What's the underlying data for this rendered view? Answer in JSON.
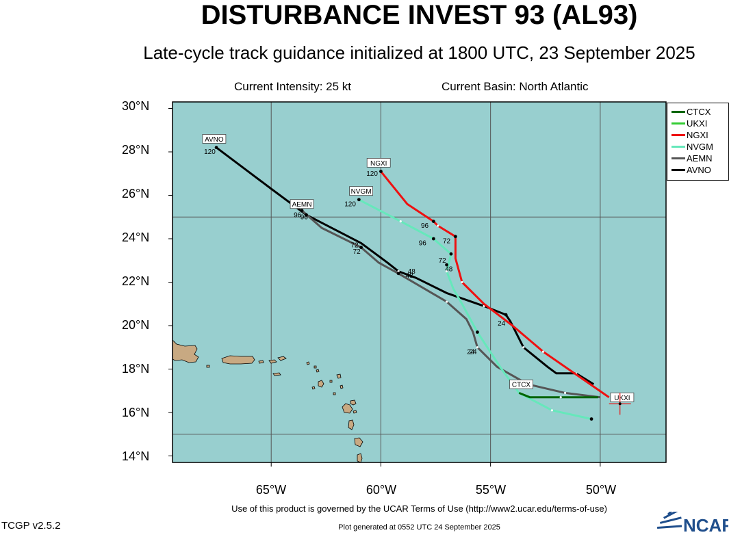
{
  "header": {
    "title": "DISTURBANCE INVEST 93 (AL93)",
    "subtitle": "Late-cycle track guidance initialized at 1800 UTC, 23 September 2025"
  },
  "info": {
    "intensity": "Current Intensity: 25 kt",
    "basin": "Current Basin: North Atlantic"
  },
  "colors": {
    "ocean": "#98cfcf",
    "land": "#c8a982",
    "CTCX": "#006400",
    "UKXI": "#33cc33",
    "NGXI": "#ee1111",
    "NVGM": "#66e8bb",
    "AEMN": "#555555",
    "AVNO": "#000000"
  },
  "chart_data": {
    "type": "map",
    "axes": {
      "lon_range": [
        -69.5,
        -47
      ],
      "lat_range": [
        13.7,
        30.3
      ],
      "lat_ticks": [
        {
          "value": 30,
          "label": "30°N"
        },
        {
          "value": 28,
          "label": "28°N"
        },
        {
          "value": 26,
          "label": "26°N"
        },
        {
          "value": 24,
          "label": "24°N"
        },
        {
          "value": 22,
          "label": "22°N"
        },
        {
          "value": 20,
          "label": "20°N"
        },
        {
          "value": 18,
          "label": "18°N"
        },
        {
          "value": 16,
          "label": "16°N"
        },
        {
          "value": 14,
          "label": "14°N"
        }
      ],
      "lon_ticks": [
        {
          "value": -65,
          "label": "65°W"
        },
        {
          "value": -60,
          "label": "60°W"
        },
        {
          "value": -55,
          "label": "55°W"
        },
        {
          "value": -50,
          "label": "50°W"
        }
      ],
      "gridlines": {
        "lon": [
          -65,
          -60,
          -55,
          -50
        ],
        "lat": [
          15,
          25
        ]
      }
    },
    "current_position": {
      "lon": -49.1,
      "lat": 16.4
    },
    "legend": [
      "CTCX",
      "UKXI",
      "NGXI",
      "NVGM",
      "AEMN",
      "AVNO"
    ],
    "legend_position": "top-right",
    "series": [
      {
        "name": "CTCX",
        "label_at": [
          -53.6,
          17.3
        ],
        "points": [
          [
            -50.1,
            16.7
          ],
          [
            -51.8,
            16.7
          ],
          [
            -53.2,
            16.7
          ],
          [
            -53.7,
            16.9
          ]
        ],
        "hour_labels": []
      },
      {
        "name": "UKXI",
        "label_at": [
          -49.0,
          16.7
        ],
        "points": [],
        "hour_labels": []
      },
      {
        "name": "NGXI",
        "label_at": [
          -60.1,
          27.5
        ],
        "points": [
          [
            -49.6,
            16.7
          ],
          [
            -52.6,
            18.8
          ],
          [
            -54.0,
            20.0
          ],
          [
            -55.3,
            21.0
          ],
          [
            -56.3,
            22.0
          ],
          [
            -56.6,
            23.1
          ],
          [
            -56.6,
            24.1
          ],
          [
            -57.4,
            24.6
          ],
          [
            -57.6,
            24.8
          ],
          [
            -58.8,
            25.6
          ],
          [
            -60.0,
            27.1
          ]
        ],
        "dots": [
          [
            -56.6,
            24.1
          ],
          [
            -57.6,
            24.8
          ],
          [
            -60.0,
            27.1
          ]
        ],
        "hour_labels": [
          {
            "text": "72",
            "at": [
              -57.0,
              23.8
            ]
          },
          {
            "text": "96",
            "at": [
              -58.0,
              24.5
            ]
          },
          {
            "text": "120",
            "at": [
              -60.4,
              26.9
            ]
          }
        ]
      },
      {
        "name": "NVGM",
        "label_at": [
          -60.9,
          26.2
        ],
        "points": [
          [
            -50.4,
            15.7
          ],
          [
            -52.2,
            16.1
          ],
          [
            -53.7,
            16.9
          ],
          [
            -54.5,
            18.0
          ],
          [
            -55.6,
            19.7
          ],
          [
            -56.3,
            21.0
          ],
          [
            -56.7,
            21.7
          ],
          [
            -57.0,
            22.5
          ],
          [
            -56.8,
            23.3
          ],
          [
            -57.6,
            24.0
          ],
          [
            -59.1,
            24.8
          ],
          [
            -61.0,
            25.8
          ]
        ],
        "dots": [
          [
            -50.4,
            15.7
          ],
          [
            -55.6,
            19.7
          ],
          [
            -57.0,
            22.8
          ],
          [
            -56.8,
            23.3
          ],
          [
            -57.6,
            24.0
          ],
          [
            -61.0,
            25.8
          ]
        ],
        "hour_labels": [
          {
            "text": "24",
            "at": [
              -55.9,
              18.7
            ]
          },
          {
            "text": "48",
            "at": [
              -56.9,
              22.5
            ]
          },
          {
            "text": "72",
            "at": [
              -57.2,
              22.9
            ]
          },
          {
            "text": "96",
            "at": [
              -58.1,
              23.7
            ]
          },
          {
            "text": "120",
            "at": [
              -61.4,
              25.5
            ]
          }
        ]
      },
      {
        "name": "AEMN",
        "label_at": [
          -63.6,
          25.6
        ],
        "points": [
          [
            -50.0,
            16.7
          ],
          [
            -51.6,
            16.9
          ],
          [
            -53.3,
            17.3
          ],
          [
            -54.7,
            18.1
          ],
          [
            -55.6,
            19.0
          ],
          [
            -55.8,
            19.7
          ],
          [
            -56.1,
            20.3
          ],
          [
            -57.0,
            21.1
          ],
          [
            -59.2,
            22.4
          ],
          [
            -60.1,
            22.9
          ],
          [
            -60.9,
            23.6
          ],
          [
            -62.7,
            24.5
          ],
          [
            -63.6,
            25.3
          ]
        ],
        "dots": [
          [
            -60.9,
            23.6
          ],
          [
            -59.2,
            22.4
          ],
          [
            -63.6,
            25.3
          ]
        ],
        "hour_labels": [
          {
            "text": "24",
            "at": [
              -55.8,
              18.7
            ]
          },
          {
            "text": "48",
            "at": [
              -58.7,
              22.2
            ]
          },
          {
            "text": "72",
            "at": [
              -61.1,
              23.3
            ]
          },
          {
            "text": "96",
            "at": [
              -63.5,
              24.9
            ]
          }
        ]
      },
      {
        "name": "AVNO",
        "label_at": [
          -67.6,
          28.6
        ],
        "points": [
          [
            -50.3,
            17.3
          ],
          [
            -51.1,
            17.8
          ],
          [
            -52.0,
            17.8
          ],
          [
            -52.4,
            18.1
          ],
          [
            -53.5,
            19.0
          ],
          [
            -54.1,
            20.2
          ],
          [
            -54.3,
            20.5
          ],
          [
            -55.3,
            20.9
          ],
          [
            -57.0,
            21.5
          ],
          [
            -58.4,
            22.2
          ],
          [
            -59.2,
            22.5
          ],
          [
            -59.7,
            22.9
          ],
          [
            -60.9,
            23.8
          ],
          [
            -63.4,
            25.1
          ],
          [
            -65.0,
            26.3
          ],
          [
            -67.5,
            28.2
          ]
        ],
        "dots": [
          [
            -54.3,
            20.5
          ],
          [
            -63.4,
            25.1
          ],
          [
            -67.5,
            28.2
          ]
        ],
        "hour_labels": [
          {
            "text": "24",
            "at": [
              -54.5,
              20.0
            ]
          },
          {
            "text": "48",
            "at": [
              -58.6,
              22.4
            ]
          },
          {
            "text": "72",
            "at": [
              -61.2,
              23.6
            ]
          },
          {
            "text": "96",
            "at": [
              -63.8,
              25.0
            ]
          },
          {
            "text": "120",
            "at": [
              -67.8,
              27.9
            ]
          }
        ]
      }
    ]
  },
  "footer": {
    "terms": "Use of this product is governed by the UCAR Terms of Use (http://www2.ucar.edu/terms-of-use)",
    "version": "TCGP v2.5.2",
    "generated": "Plot generated at 0552 UTC   24 September 2025",
    "logo_text": "NCAR"
  }
}
